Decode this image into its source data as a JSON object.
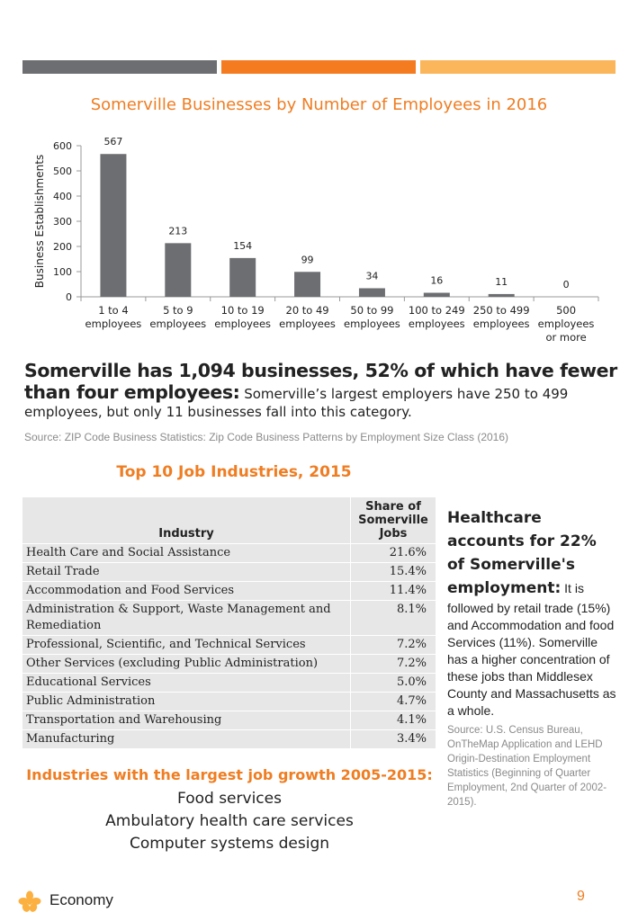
{
  "header": {
    "colors": [
      "#6d6e71",
      "#f47b20",
      "#fbb55b"
    ]
  },
  "chart_data": {
    "type": "bar",
    "title": "Somerville Businesses by Number of Employees in 2016",
    "ylabel": "Business Establishments",
    "xlabel": "",
    "ylim": [
      0,
      600
    ],
    "yticks": [
      0,
      100,
      200,
      300,
      400,
      500,
      600
    ],
    "categories": [
      [
        "1 to 4",
        "employees"
      ],
      [
        "5 to 9",
        "employees"
      ],
      [
        "10 to 19",
        "employees"
      ],
      [
        "20 to 49",
        "employees"
      ],
      [
        "50 to 99",
        "employees"
      ],
      [
        "100 to 249",
        "employees"
      ],
      [
        "250 to 499",
        "employees"
      ],
      [
        "500",
        "employees",
        "or more"
      ]
    ],
    "values": [
      567,
      213,
      154,
      99,
      34,
      16,
      11,
      0
    ],
    "bar_color": "#6d6e71",
    "grid": false
  },
  "headline": {
    "bold": "Somerville has 1,094 businesses, 52% of which have fewer than four employees:",
    "rest": " Somerville’s largest employers have 250 to 499 employees, but only 11 businesses fall into this category."
  },
  "source1": "Source: ZIP Code Business Statistics: Zip Code Business Patterns by Employment Size Class (2016)",
  "table": {
    "title": "Top 10 Job Industries, 2015",
    "col_industry": "Industry",
    "col_share": [
      "Share of",
      "Somerville",
      "Jobs"
    ],
    "rows": [
      [
        "Health Care and Social Assistance",
        "21.6%"
      ],
      [
        "Retail Trade",
        "15.4%"
      ],
      [
        "Accommodation and Food Services",
        "11.4%"
      ],
      [
        "Administration & Support, Waste Management and Remediation",
        "8.1%"
      ],
      [
        "Professional, Scientific, and Technical Services",
        "7.2%"
      ],
      [
        "Other Services (excluding Public Administration)",
        "7.2%"
      ],
      [
        "Educational Services",
        "5.0%"
      ],
      [
        "Public Administration",
        "4.7%"
      ],
      [
        "Transportation and Warehousing",
        "4.1%"
      ],
      [
        "Manufacturing",
        "3.4%"
      ]
    ]
  },
  "side": {
    "heading": "Healthcare accounts for 22% of Somerville's employment:",
    "body": " It is followed by retail trade (15%) and Accommodation and food Services (11%). Somerville has a higher concentration of these jobs than Middlesex County and Massachusetts as a whole.",
    "source": "Source: U.S. Census Bureau, OnTheMap Application and LEHD Origin-Destination Employment Statistics (Beginning of Quarter Employment, 2nd Quarter of 2002-2015)."
  },
  "growth": {
    "title": "Industries with the largest job growth 2005-2015:",
    "items": [
      "Food services",
      "Ambulatory health care services",
      "Computer systems design"
    ]
  },
  "footer": {
    "label": "Economy",
    "page": "9",
    "logo_icon": "flower-icon",
    "logo_color": "#fbb040"
  }
}
